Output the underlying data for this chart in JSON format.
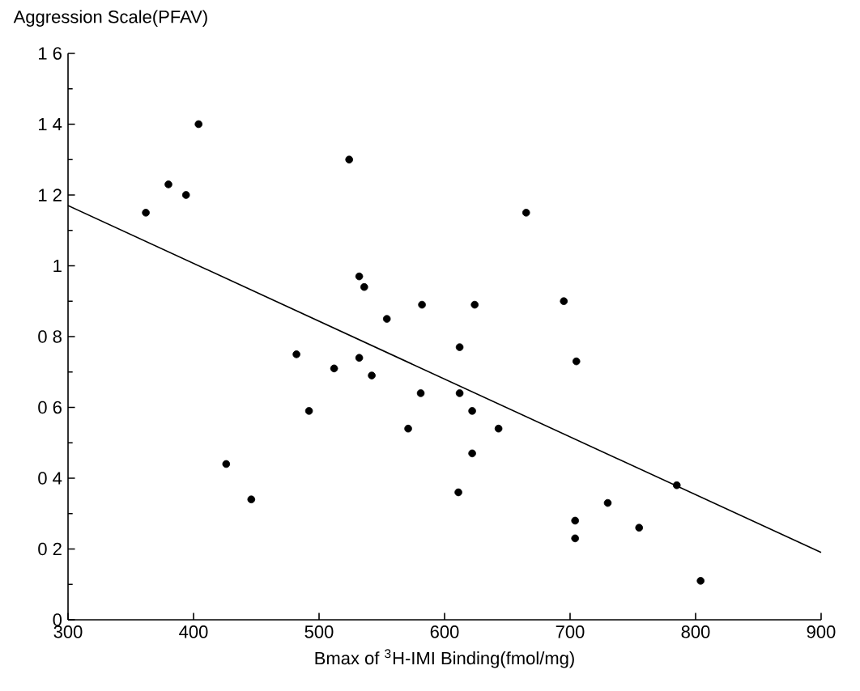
{
  "chart_data": {
    "type": "scatter",
    "xlabel": "Bmax of $^{3}$H-IMI Binding(fmol/mg)",
    "ylabel": "Aggression Scale(PFAV)",
    "xlim": [
      300,
      900
    ],
    "ylim": [
      0,
      1.6
    ],
    "xticks": [
      300,
      400,
      500,
      600,
      700,
      800,
      900
    ],
    "yticks": [
      0,
      {
        "value": 0.2,
        "label": "0 2"
      },
      {
        "value": 0.4,
        "label": "0 4"
      },
      {
        "value": 0.6,
        "label": "0 6"
      },
      {
        "value": 0.8,
        "label": "0 8"
      },
      1,
      {
        "value": 1.2,
        "label": "1 2"
      },
      {
        "value": 1.4,
        "label": "1 4"
      },
      {
        "value": 1.6,
        "label": "1 6"
      }
    ],
    "marker": "circle",
    "grid": false,
    "series": [
      {
        "color": "#000000",
        "x": [
          362,
          380,
          394,
          404,
          426,
          446,
          482,
          492,
          512,
          524,
          532,
          536,
          532,
          542,
          554,
          571,
          581,
          582,
          624,
          665,
          695,
          612,
          705,
          612,
          622,
          643,
          622,
          611,
          730,
          704,
          704,
          755,
          785,
          804
        ],
        "values": [
          1.15,
          1.23,
          1.2,
          1.4,
          0.44,
          0.34,
          0.75,
          0.59,
          0.71,
          1.3,
          0.97,
          0.94,
          0.74,
          0.69,
          0.85,
          0.54,
          0.64,
          0.89,
          0.89,
          1.15,
          0.9,
          0.77,
          0.73,
          0.64,
          0.59,
          0.54,
          0.47,
          0.36,
          0.33,
          0.28,
          0.23,
          0.26,
          0.38,
          0.11
        ]
      },
      {
        "type": "line",
        "marker": "none",
        "color": "#000000",
        "x": [
          300,
          900
        ],
        "values": [
          1.17,
          0.19
        ]
      }
    ]
  }
}
